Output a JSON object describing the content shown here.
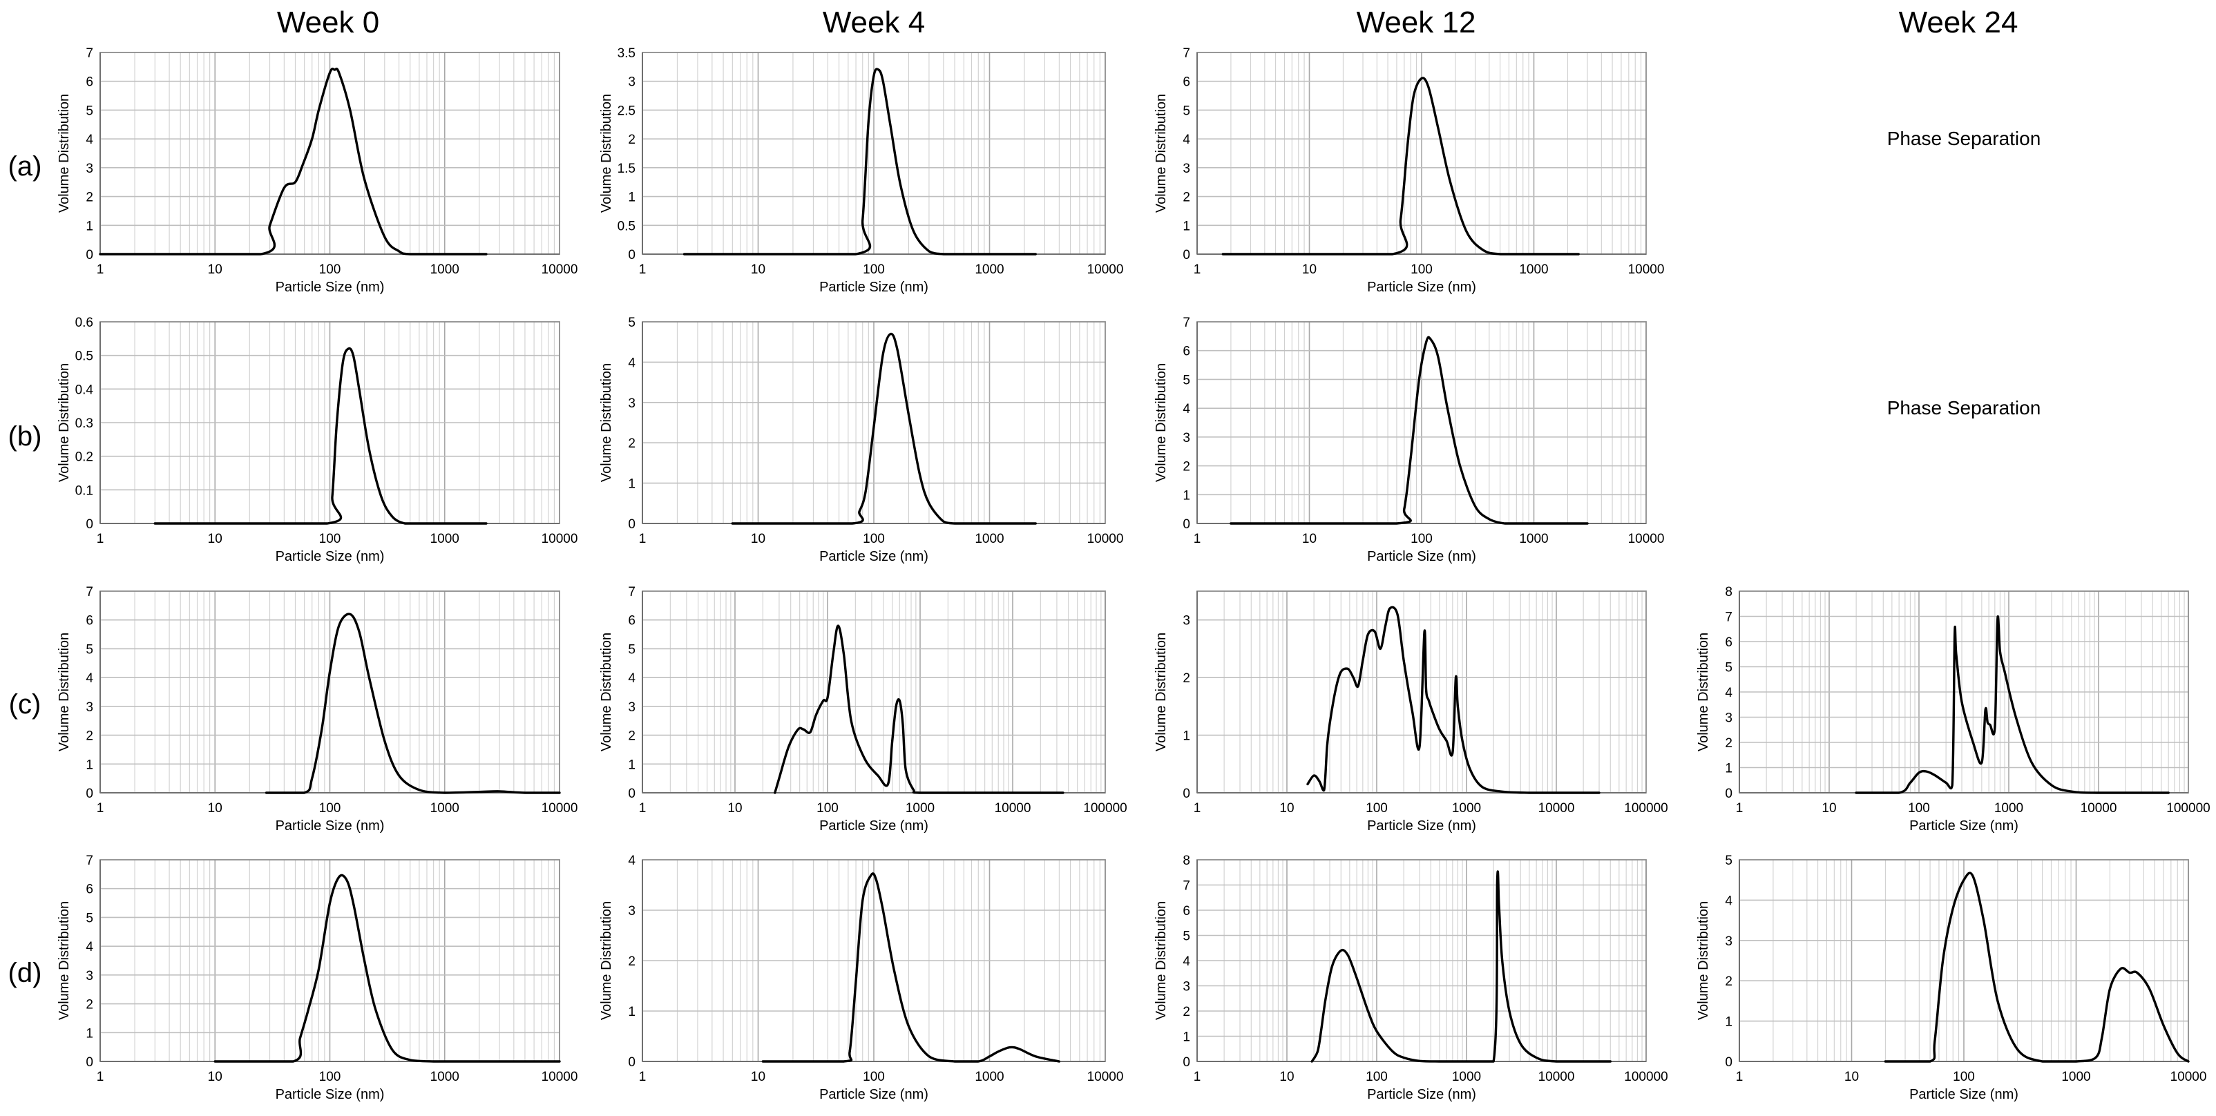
{
  "columns": [
    "Week 0",
    "Week 4",
    "Week 12",
    "Week 24"
  ],
  "rows": [
    "(a)",
    "(b)",
    "(c)",
    "(d)"
  ],
  "colors": {
    "line": "#000000",
    "grid": "#bfbfbf",
    "frame": "#8c8c8c"
  },
  "chart_data": [
    {
      "id": "a-w0",
      "type": "line",
      "row": 0,
      "col": 0,
      "xscale": "log",
      "xlim": [
        1,
        10000
      ],
      "ylim": [
        0,
        7
      ],
      "ytick_step": 1,
      "xticks": [
        "1",
        "10",
        "100",
        "1000",
        "10000"
      ],
      "yticks": [
        "0",
        "1",
        "2",
        "3",
        "4",
        "5",
        "6",
        "7"
      ],
      "xlabel": "Particle Size (nm)",
      "ylabel": "Volume Distribution",
      "x": [
        1,
        25,
        30,
        40,
        50,
        58,
        70,
        80,
        100,
        110,
        120,
        150,
        200,
        300,
        400,
        500,
        1000,
        2300
      ],
      "y": [
        0,
        0,
        1,
        2.3,
        2.5,
        3.1,
        4.0,
        5.0,
        6.3,
        6.4,
        6.3,
        5.0,
        2.6,
        0.6,
        0.1,
        0,
        0,
        0
      ]
    },
    {
      "id": "a-w4",
      "type": "line",
      "row": 0,
      "col": 1,
      "xscale": "log",
      "xlim": [
        1,
        10000
      ],
      "ylim": [
        0,
        3.5
      ],
      "ytick_step": 0.5,
      "xticks": [
        "1",
        "10",
        "100",
        "1000",
        "10000"
      ],
      "yticks": [
        "0",
        "0.5",
        "1",
        "1.5",
        "2",
        "2.5",
        "3",
        "3.5"
      ],
      "xlabel": "Particle Size (nm)",
      "ylabel": "Volume Distribution",
      "x": [
        2.3,
        70,
        80,
        90,
        100,
        110,
        120,
        140,
        170,
        220,
        300,
        400,
        500,
        1000,
        2500
      ],
      "y": [
        0,
        0,
        0.6,
        2.3,
        3.1,
        3.2,
        3.0,
        2.2,
        1.2,
        0.4,
        0.05,
        0,
        0,
        0,
        0
      ]
    },
    {
      "id": "a-w12",
      "type": "line",
      "row": 0,
      "col": 2,
      "xscale": "log",
      "xlim": [
        1,
        10000
      ],
      "ylim": [
        0,
        7
      ],
      "ytick_step": 1,
      "xticks": [
        "1",
        "10",
        "100",
        "1000",
        "10000"
      ],
      "yticks": [
        "0",
        "1",
        "2",
        "3",
        "4",
        "5",
        "6",
        "7"
      ],
      "xlabel": "Particle Size (nm)",
      "ylabel": "Volume Distribution",
      "x": [
        1.7,
        55,
        65,
        75,
        85,
        100,
        115,
        140,
        180,
        250,
        350,
        500,
        1000,
        2500
      ],
      "y": [
        0,
        0,
        1.2,
        3.8,
        5.5,
        6.1,
        5.8,
        4.4,
        2.5,
        0.8,
        0.15,
        0,
        0,
        0
      ]
    },
    {
      "id": "a-w24",
      "type": "empty",
      "row": 0,
      "col": 3,
      "message": "Phase Separation"
    },
    {
      "id": "b-w0",
      "type": "line",
      "row": 1,
      "col": 0,
      "xscale": "log",
      "xlim": [
        1,
        10000
      ],
      "ylim": [
        0,
        0.6
      ],
      "ytick_step": 0.1,
      "xticks": [
        "1",
        "10",
        "100",
        "1000",
        "10000"
      ],
      "yticks": [
        "0",
        "0.1",
        "0.2",
        "0.3",
        "0.4",
        "0.5",
        "0.6"
      ],
      "xlabel": "Particle Size (nm)",
      "ylabel": "Volume Distribution",
      "x": [
        3,
        95,
        105,
        115,
        130,
        145,
        160,
        180,
        220,
        280,
        350,
        450,
        600,
        1000,
        2300
      ],
      "y": [
        0,
        0,
        0.08,
        0.3,
        0.48,
        0.52,
        0.5,
        0.4,
        0.22,
        0.08,
        0.02,
        0,
        0,
        0,
        0
      ]
    },
    {
      "id": "b-w4",
      "type": "line",
      "row": 1,
      "col": 1,
      "xscale": "log",
      "xlim": [
        1,
        10000
      ],
      "ylim": [
        0,
        5
      ],
      "ytick_step": 1,
      "xticks": [
        "1",
        "10",
        "100",
        "1000",
        "10000"
      ],
      "yticks": [
        "0",
        "1",
        "2",
        "3",
        "4",
        "5"
      ],
      "xlabel": "Particle Size (nm)",
      "ylabel": "Volume Distribution",
      "x": [
        6,
        65,
        75,
        85,
        100,
        120,
        140,
        160,
        200,
        250,
        300,
        400,
        500,
        700,
        2500
      ],
      "y": [
        0,
        0,
        0.3,
        0.8,
        2.4,
        4.2,
        4.7,
        4.3,
        2.7,
        1.2,
        0.5,
        0.05,
        0,
        0,
        0
      ]
    },
    {
      "id": "b-w12",
      "type": "line",
      "row": 1,
      "col": 2,
      "xscale": "log",
      "xlim": [
        1,
        10000
      ],
      "ylim": [
        0,
        7
      ],
      "ytick_step": 1,
      "xticks": [
        "1",
        "10",
        "100",
        "1000",
        "10000"
      ],
      "yticks": [
        "0",
        "1",
        "2",
        "3",
        "4",
        "5",
        "6",
        "7"
      ],
      "xlabel": "Particle Size (nm)",
      "ylabel": "Volume Distribution",
      "x": [
        2,
        60,
        70,
        80,
        95,
        110,
        120,
        140,
        170,
        220,
        300,
        400,
        550,
        800,
        3000
      ],
      "y": [
        0,
        0,
        0.5,
        2.3,
        5.0,
        6.3,
        6.4,
        5.8,
        4.0,
        2.0,
        0.6,
        0.15,
        0,
        0,
        0
      ]
    },
    {
      "id": "b-w24",
      "type": "empty",
      "row": 1,
      "col": 3,
      "message": "Phase Separation"
    },
    {
      "id": "c-w0",
      "type": "line",
      "row": 2,
      "col": 0,
      "xscale": "log",
      "xlim": [
        1,
        10000
      ],
      "ylim": [
        0,
        7
      ],
      "ytick_step": 1,
      "xticks": [
        "1",
        "10",
        "100",
        "1000",
        "10000"
      ],
      "yticks": [
        "0",
        "1",
        "2",
        "3",
        "4",
        "5",
        "6",
        "7"
      ],
      "xlabel": "Particle Size (nm)",
      "ylabel": "Volume Distribution",
      "x": [
        28,
        60,
        70,
        85,
        100,
        120,
        150,
        180,
        220,
        300,
        400,
        600,
        1000,
        2000,
        3000,
        5000,
        10000
      ],
      "y": [
        0,
        0,
        0.5,
        2.2,
        4.2,
        5.8,
        6.2,
        5.6,
        4.0,
        1.8,
        0.6,
        0.1,
        0,
        0.03,
        0.05,
        0,
        0
      ]
    },
    {
      "id": "c-w4",
      "type": "line",
      "row": 2,
      "col": 1,
      "xscale": "log",
      "xlim": [
        1,
        100000
      ],
      "ylim": [
        0,
        7
      ],
      "ytick_step": 1,
      "xticks": [
        "1",
        "10",
        "100",
        "1000",
        "10000",
        "100000"
      ],
      "yticks": [
        "0",
        "1",
        "2",
        "3",
        "4",
        "5",
        "6",
        "7"
      ],
      "xlabel": "Particle Size (nm)",
      "ylabel": "Volume Distribution",
      "x": [
        27,
        30,
        38,
        48,
        55,
        65,
        75,
        90,
        100,
        115,
        130,
        150,
        180,
        250,
        350,
        450,
        500,
        550,
        600,
        650,
        700,
        850,
        1000,
        5000,
        35000
      ],
      "y": [
        0,
        0.5,
        1.6,
        2.2,
        2.2,
        2.1,
        2.7,
        3.2,
        3.3,
        4.8,
        5.8,
        4.8,
        2.5,
        1.2,
        0.6,
        0.3,
        1.8,
        3.0,
        3.2,
        2.4,
        0.8,
        0.1,
        0,
        0,
        0
      ]
    },
    {
      "id": "c-w12",
      "type": "line",
      "row": 2,
      "col": 2,
      "xscale": "log",
      "xlim": [
        1,
        100000
      ],
      "ylim": [
        0,
        3.5
      ],
      "ytick_step": 1,
      "xticks": [
        "1",
        "10",
        "100",
        "1000",
        "10000",
        "100000"
      ],
      "yticks": [
        "0",
        "1",
        "2",
        "3"
      ],
      "xlabel": "Particle Size (nm)",
      "ylabel": "Volume Distribution",
      "x": [
        17,
        20,
        23,
        26,
        28,
        30,
        35,
        40,
        48,
        55,
        62,
        70,
        80,
        95,
        110,
        125,
        140,
        170,
        200,
        250,
        300,
        340,
        355,
        380,
        420,
        500,
        600,
        700,
        760,
        800,
        900,
        1100,
        1500,
        2500,
        5000,
        10000,
        30000
      ],
      "y": [
        0.15,
        0.3,
        0.2,
        0.05,
        0.8,
        1.2,
        1.8,
        2.1,
        2.15,
        2.0,
        1.85,
        2.3,
        2.75,
        2.8,
        2.5,
        2.9,
        3.2,
        3.1,
        2.3,
        1.4,
        0.8,
        2.8,
        1.8,
        1.6,
        1.4,
        1.1,
        0.9,
        0.7,
        2.0,
        1.5,
        0.9,
        0.4,
        0.1,
        0.02,
        0,
        0,
        0
      ]
    },
    {
      "id": "c-w24",
      "type": "line",
      "row": 2,
      "col": 3,
      "xscale": "log",
      "xlim": [
        1,
        100000
      ],
      "ylim": [
        0,
        8
      ],
      "ytick_step": 1,
      "xticks": [
        "1",
        "10",
        "100",
        "1000",
        "10000",
        "100000"
      ],
      "yticks": [
        "0",
        "1",
        "2",
        "3",
        "4",
        "5",
        "6",
        "7",
        "8"
      ],
      "xlabel": "Particle Size (nm)",
      "ylabel": "Volume Distribution",
      "x": [
        20,
        60,
        80,
        100,
        120,
        150,
        200,
        235,
        250,
        260,
        300,
        400,
        500,
        550,
        580,
        620,
        700,
        750,
        800,
        900,
        1200,
        1800,
        3000,
        5000,
        10000,
        60000
      ],
      "y": [
        0,
        0,
        0.4,
        0.8,
        0.85,
        0.7,
        0.4,
        0.3,
        6.3,
        5.5,
        3.6,
        2.0,
        1.2,
        3.3,
        2.8,
        2.7,
        2.6,
        6.9,
        5.6,
        4.8,
        3.0,
        1.2,
        0.3,
        0.05,
        0,
        0
      ]
    },
    {
      "id": "d-w0",
      "type": "line",
      "row": 3,
      "col": 0,
      "xscale": "log",
      "xlim": [
        1,
        10000
      ],
      "ylim": [
        0,
        7
      ],
      "ytick_step": 1,
      "xticks": [
        "1",
        "10",
        "100",
        "1000",
        "10000"
      ],
      "yticks": [
        "0",
        "1",
        "2",
        "3",
        "4",
        "5",
        "6",
        "7"
      ],
      "xlabel": "Particle Size (nm)",
      "ylabel": "Volume Distribution",
      "x": [
        10,
        48,
        55,
        65,
        80,
        100,
        120,
        140,
        160,
        200,
        250,
        350,
        500,
        800,
        1000,
        10000
      ],
      "y": [
        0,
        0,
        0.8,
        1.8,
        3.2,
        5.5,
        6.4,
        6.3,
        5.5,
        3.5,
        1.8,
        0.4,
        0.05,
        0,
        0,
        0
      ]
    },
    {
      "id": "d-w4",
      "type": "line",
      "row": 3,
      "col": 1,
      "xscale": "log",
      "xlim": [
        1,
        10000
      ],
      "ylim": [
        0,
        4
      ],
      "ytick_step": 1,
      "xticks": [
        "1",
        "10",
        "100",
        "1000",
        "10000"
      ],
      "yticks": [
        "0",
        "1",
        "2",
        "3",
        "4"
      ],
      "xlabel": "Particle Size (nm)",
      "ylabel": "Volume Distribution",
      "x": [
        11,
        55,
        62,
        70,
        80,
        95,
        105,
        120,
        150,
        200,
        300,
        500,
        800,
        1000,
        1200,
        1500,
        1800,
        2500,
        4000
      ],
      "y": [
        0,
        0,
        0.2,
        1.6,
        3.2,
        3.7,
        3.6,
        3.0,
        1.8,
        0.7,
        0.1,
        0,
        0,
        0.1,
        0.2,
        0.28,
        0.25,
        0.1,
        0
      ]
    },
    {
      "id": "d-w12",
      "type": "line",
      "row": 3,
      "col": 2,
      "xscale": "log",
      "xlim": [
        1,
        100000
      ],
      "ylim": [
        0,
        8
      ],
      "ytick_step": 1,
      "xticks": [
        "1",
        "10",
        "100",
        "1000",
        "10000",
        "100000"
      ],
      "yticks": [
        "0",
        "1",
        "2",
        "3",
        "4",
        "5",
        "6",
        "7",
        "8"
      ],
      "xlabel": "Particle Size (nm)",
      "ylabel": "Volume Distribution",
      "x": [
        19,
        22,
        24,
        27,
        32,
        40,
        48,
        60,
        80,
        100,
        150,
        200,
        300,
        500,
        1000,
        2000,
        2200,
        2300,
        2500,
        3000,
        4000,
        6000,
        10000,
        40000
      ],
      "y": [
        0,
        0.4,
        1.2,
        2.5,
        3.8,
        4.4,
        4.2,
        3.3,
        2.0,
        1.2,
        0.4,
        0.15,
        0.02,
        0,
        0,
        0,
        7.2,
        6.2,
        4.0,
        2.0,
        0.7,
        0.15,
        0,
        0
      ]
    },
    {
      "id": "d-w24",
      "type": "line",
      "row": 3,
      "col": 3,
      "xscale": "log",
      "xlim": [
        1,
        10000
      ],
      "ylim": [
        0,
        5
      ],
      "ytick_step": 1,
      "xticks": [
        "1",
        "10",
        "100",
        "1000",
        "10000"
      ],
      "yticks": [
        "0",
        "1",
        "2",
        "3",
        "4",
        "5"
      ],
      "xlabel": "Particle Size (nm)",
      "ylabel": "Volume Distribution",
      "x": [
        20,
        50,
        55,
        65,
        80,
        100,
        120,
        150,
        200,
        300,
        500,
        1000,
        1500,
        1700,
        2000,
        2500,
        3000,
        3500,
        4500,
        6000,
        8000,
        10000
      ],
      "y": [
        0,
        0,
        0.5,
        2.5,
        3.8,
        4.5,
        4.6,
        3.5,
        1.5,
        0.3,
        0,
        0,
        0.1,
        0.6,
        1.8,
        2.3,
        2.2,
        2.2,
        1.8,
        0.9,
        0.2,
        0
      ]
    }
  ]
}
